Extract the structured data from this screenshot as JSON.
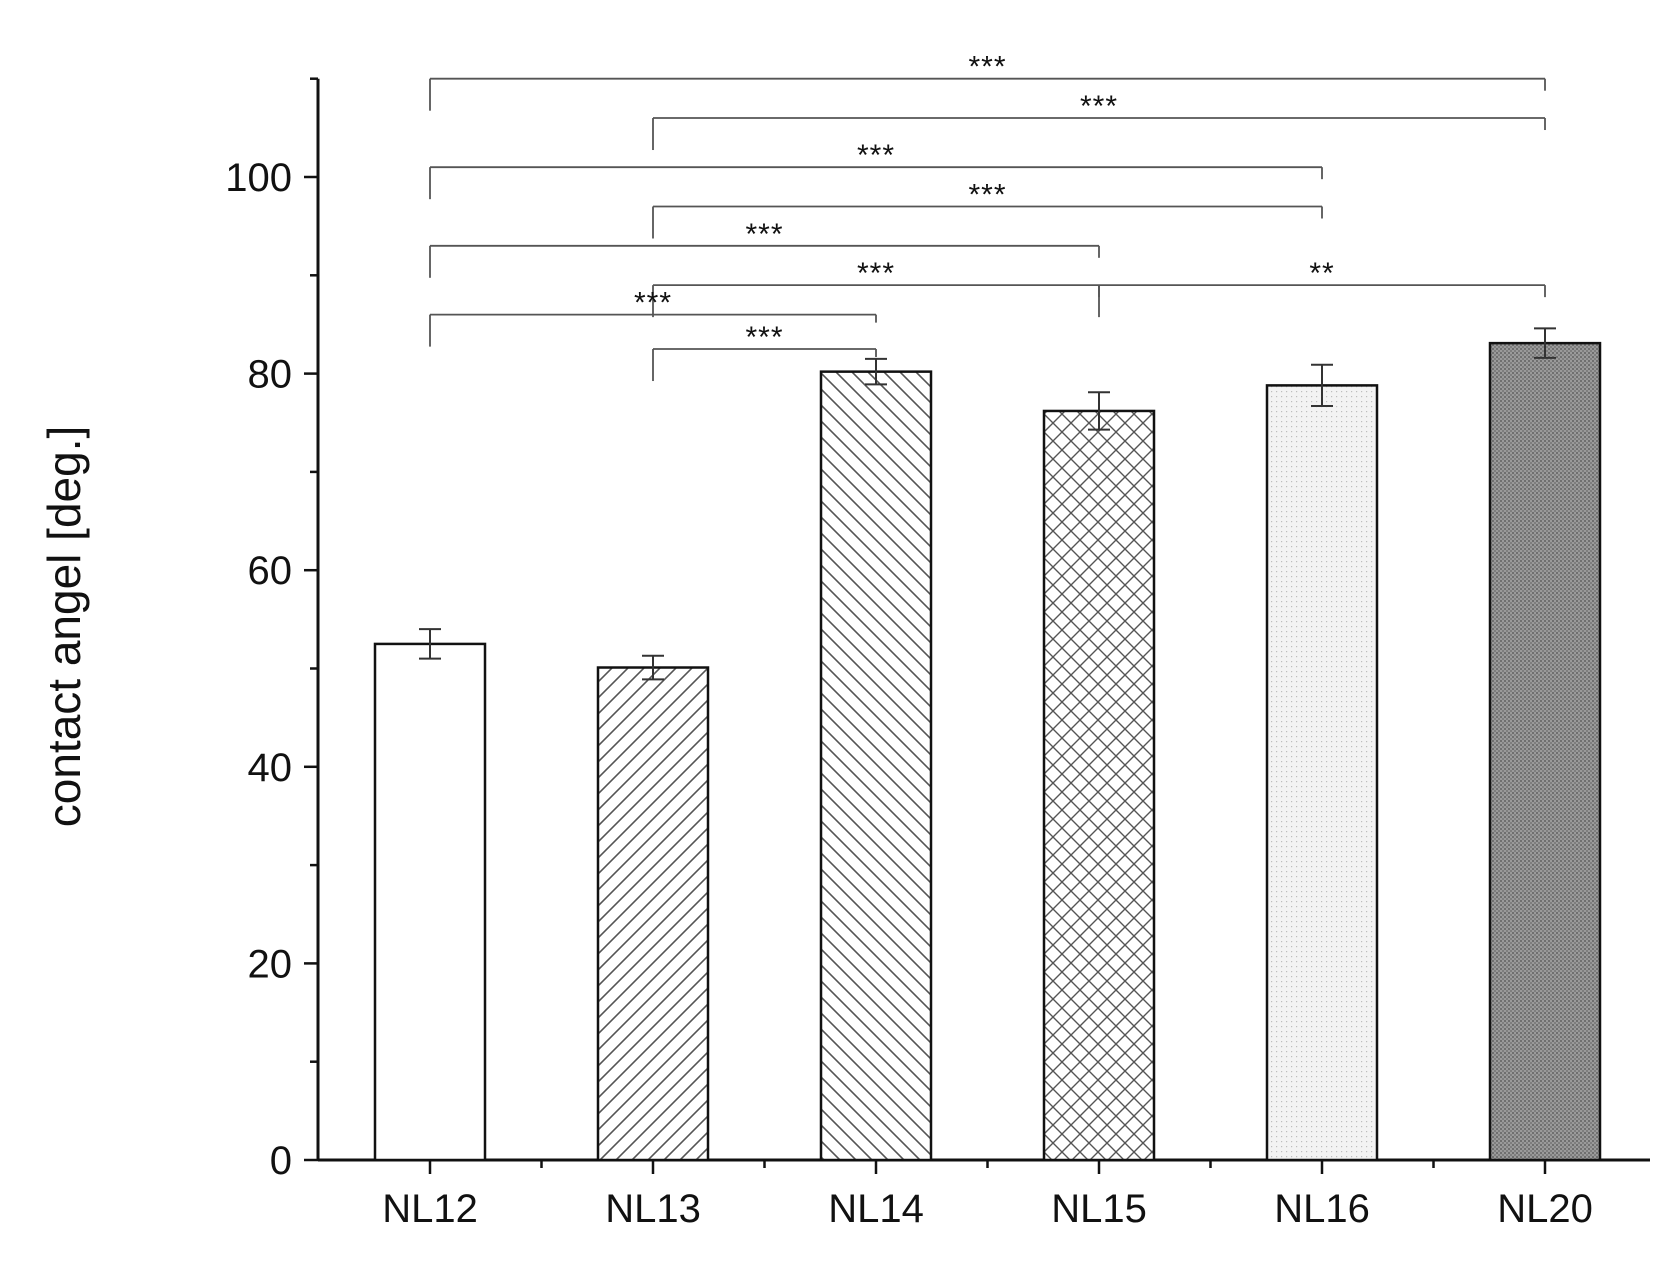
{
  "chart_data": {
    "type": "bar",
    "ylabel": "contact angel [deg.]",
    "xlabel": "",
    "ylim": [
      0,
      110
    ],
    "yticks": [
      0,
      20,
      40,
      60,
      80,
      100
    ],
    "grid": false,
    "legend": "none",
    "categories": [
      "NL12",
      "NL13",
      "NL14",
      "NL15",
      "NL16",
      "NL20"
    ],
    "values": [
      52.5,
      50.1,
      80.2,
      76.2,
      78.8,
      83.1
    ],
    "errors": [
      1.5,
      1.2,
      1.3,
      1.9,
      2.1,
      1.5
    ],
    "patterns": [
      "none",
      "diagonal-up",
      "diagonal-down",
      "crosshatch",
      "light-dots",
      "dark-fill"
    ],
    "comparisons": [
      {
        "from": "NL12",
        "to": "NL20",
        "label": "***",
        "level": 110
      },
      {
        "from": "NL13",
        "to": "NL20",
        "label": "***",
        "level": 106
      },
      {
        "from": "NL12",
        "to": "NL16",
        "label": "***",
        "level": 101
      },
      {
        "from": "NL13",
        "to": "NL16",
        "label": "***",
        "level": 97
      },
      {
        "from": "NL12",
        "to": "NL15",
        "label": "***",
        "level": 93
      },
      {
        "from": "NL13",
        "to": "NL15",
        "label": "***",
        "level": 89
      },
      {
        "from": "NL15",
        "to": "NL20",
        "label": "**",
        "level": 89
      },
      {
        "from": "NL12",
        "to": "NL14",
        "label": "***",
        "level": 86
      },
      {
        "from": "NL13",
        "to": "NL14",
        "label": "***",
        "level": 82.5
      }
    ]
  }
}
